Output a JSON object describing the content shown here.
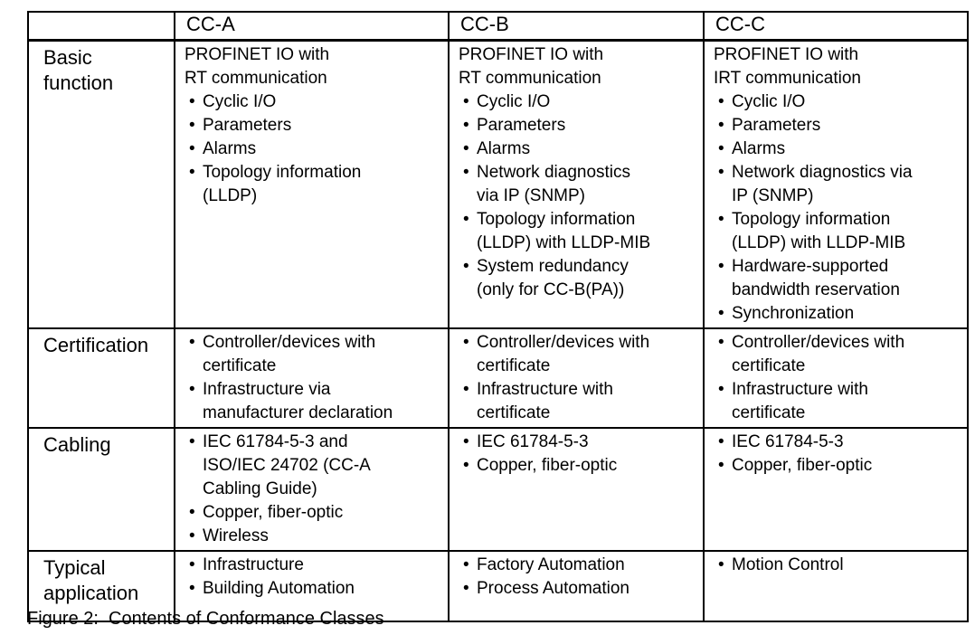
{
  "figure": {
    "caption": "Figure 2:  Contents of Conformance Classes"
  },
  "colors": {
    "text": "#000000",
    "background": "#ffffff",
    "border": "#000000"
  },
  "table": {
    "column_headers": [
      "",
      "CC-A",
      "CC-B",
      "CC-C"
    ],
    "rows": [
      {
        "header": "Basic\nfunction",
        "cells": [
          {
            "intro": "PROFINET IO with\nRT communication",
            "bullets": [
              "Cyclic I/O",
              "Parameters",
              "Alarms",
              "Topology information\n(LLDP)"
            ]
          },
          {
            "intro": "PROFINET IO with\nRT communication",
            "bullets": [
              "Cyclic I/O",
              "Parameters",
              "Alarms",
              "Network diagnostics\nvia IP (SNMP)",
              "Topology information\n(LLDP) with LLDP-MIB",
              "System redundancy\n(only for CC-B(PA))"
            ]
          },
          {
            "intro": "PROFINET IO with\nIRT communication",
            "bullets": [
              "Cyclic I/O",
              "Parameters",
              "Alarms",
              "Network diagnostics via\nIP (SNMP)",
              "Topology information\n(LLDP) with LLDP-MIB",
              "Hardware-supported\nbandwidth reservation",
              "Synchronization"
            ]
          }
        ]
      },
      {
        "header": "Certification",
        "cells": [
          {
            "intro": "",
            "bullets": [
              "Controller/devices with\ncertificate",
              "Infrastructure via\nmanufacturer declaration"
            ]
          },
          {
            "intro": "",
            "bullets": [
              "Controller/devices with\ncertificate",
              "Infrastructure with\ncertificate"
            ]
          },
          {
            "intro": "",
            "bullets": [
              "Controller/devices with\ncertificate",
              "Infrastructure with\ncertificate"
            ]
          }
        ]
      },
      {
        "header": "Cabling",
        "cells": [
          {
            "intro": "",
            "bullets": [
              "IEC 61784-5-3 and\nISO/IEC 24702 (CC-A\nCabling Guide)",
              "Copper, fiber-optic",
              "Wireless"
            ]
          },
          {
            "intro": "",
            "bullets": [
              "IEC 61784-5-3",
              "Copper, fiber-optic"
            ]
          },
          {
            "intro": "",
            "bullets": [
              "IEC 61784-5-3",
              "Copper, fiber-optic"
            ]
          }
        ]
      },
      {
        "header": "Typical\napplication",
        "cells": [
          {
            "intro": "",
            "bullets": [
              "Infrastructure",
              "Building Automation"
            ]
          },
          {
            "intro": "",
            "bullets": [
              "Factory Automation",
              "Process Automation"
            ]
          },
          {
            "intro": "",
            "bullets": [
              "Motion Control"
            ]
          }
        ]
      }
    ]
  }
}
